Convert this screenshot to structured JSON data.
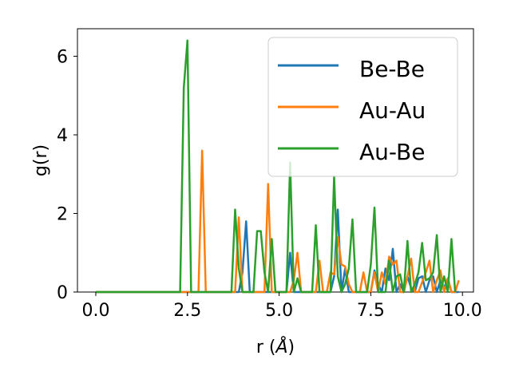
{
  "chart_data": {
    "type": "line",
    "xlabel": "r (",
    "xlabel_symbol": "Å",
    "xlabel_suffix": ")",
    "ylabel": "g(r)",
    "xlim": [
      -0.5,
      10.3
    ],
    "ylim": [
      0,
      6.7
    ],
    "xticks": [
      0.0,
      2.5,
      5.0,
      7.5,
      10.0
    ],
    "xtick_labels": [
      "0.0",
      "2.5",
      "5.0",
      "7.5",
      "10.0"
    ],
    "yticks": [
      0,
      2,
      4,
      6
    ],
    "ytick_labels": [
      "0",
      "2",
      "4",
      "6"
    ],
    "grid": false,
    "legend_position": "top-right",
    "series": [
      {
        "name": "Be-Be",
        "color": "#1f77b4",
        "x": [
          0,
          3.8,
          3.9,
          4.0,
          4.1,
          4.2,
          4.3,
          5.2,
          5.3,
          5.4,
          5.5,
          6.4,
          6.5,
          6.6,
          6.7,
          6.8,
          6.9,
          7.0,
          7.5,
          7.6,
          7.7,
          7.8,
          7.9,
          8.0,
          8.1,
          8.2,
          8.3,
          8.4,
          8.5,
          8.6,
          8.7,
          8.8,
          8.9,
          9.0,
          9.1,
          9.2,
          9.3,
          9.4,
          9.5,
          9.6,
          9.7,
          9.8,
          9.9
        ],
        "y": [
          0,
          0,
          0,
          0.5,
          1.8,
          0,
          0,
          0,
          1.0,
          0,
          0,
          0,
          0.4,
          2.1,
          0,
          0.6,
          0,
          0,
          0,
          0.55,
          0.2,
          0,
          0.6,
          0.3,
          1.1,
          0,
          0.2,
          0,
          0.4,
          0.1,
          0,
          0.35,
          0.4,
          0,
          0.3,
          0.4,
          0,
          0.3,
          0.1,
          0.35,
          0,
          0,
          0
        ]
      },
      {
        "name": "Au-Au",
        "color": "#ff7f0e",
        "x": [
          0,
          2.7,
          2.8,
          2.9,
          3.0,
          3.1,
          3.8,
          3.9,
          4.0,
          4.1,
          4.6,
          4.7,
          4.8,
          5.3,
          5.4,
          5.5,
          5.6,
          5.9,
          6.0,
          6.1,
          6.2,
          6.3,
          6.4,
          6.5,
          6.6,
          6.7,
          6.8,
          6.9,
          7.0,
          7.1,
          7.2,
          7.3,
          7.4,
          7.5,
          7.6,
          7.7,
          7.8,
          7.9,
          8.0,
          8.1,
          8.2,
          8.3,
          8.4,
          8.5,
          8.6,
          8.7,
          8.8,
          8.9,
          9.0,
          9.1,
          9.2,
          9.3,
          9.4,
          9.5,
          9.6,
          9.7,
          9.8,
          9.9
        ],
        "y": [
          0,
          0,
          0,
          3.6,
          0,
          0,
          0,
          1.9,
          0,
          0,
          0,
          2.75,
          0,
          0,
          0.3,
          1.0,
          0,
          0,
          0,
          0.8,
          0,
          0,
          0.5,
          0.45,
          1.4,
          0.7,
          0.65,
          0.2,
          0,
          0,
          0,
          0.5,
          0,
          0,
          0.5,
          0,
          0.5,
          0.2,
          0.9,
          0.7,
          0.8,
          0,
          0,
          0.4,
          0.85,
          0,
          0,
          0.25,
          0.5,
          0.8,
          0,
          0.3,
          0.55,
          0,
          0.35,
          0,
          0,
          0.3
        ]
      },
      {
        "name": "Au-Be",
        "color": "#2ca02c",
        "x": [
          0,
          2.3,
          2.4,
          2.5,
          2.6,
          3.7,
          3.8,
          3.9,
          4.0,
          4.3,
          4.4,
          4.5,
          4.6,
          4.7,
          4.8,
          4.9,
          5.2,
          5.3,
          5.4,
          5.5,
          5.6,
          5.9,
          6.0,
          6.1,
          6.4,
          6.5,
          6.6,
          6.7,
          6.8,
          6.9,
          7.0,
          7.1,
          7.2,
          7.4,
          7.5,
          7.6,
          7.7,
          7.8,
          7.9,
          8.0,
          8.1,
          8.2,
          8.3,
          8.4,
          8.5,
          8.6,
          8.7,
          8.8,
          8.9,
          9.0,
          9.1,
          9.2,
          9.3,
          9.4,
          9.5,
          9.6,
          9.7,
          9.8
        ],
        "y": [
          0,
          0,
          5.2,
          6.4,
          0,
          0,
          2.1,
          0.6,
          0,
          0,
          1.55,
          1.55,
          0.5,
          0,
          1.35,
          0,
          0,
          3.3,
          0,
          0.35,
          0,
          0,
          1.7,
          0,
          0,
          2.95,
          0.4,
          0,
          0.2,
          0.6,
          1.85,
          0,
          0,
          0,
          0.7,
          2.15,
          0,
          0,
          0,
          0.8,
          0,
          0.4,
          0.45,
          0,
          1.3,
          0,
          0.2,
          0.5,
          1.25,
          0.3,
          0.35,
          0.5,
          1.45,
          0,
          0.4,
          0,
          1.35,
          0
        ]
      }
    ]
  }
}
